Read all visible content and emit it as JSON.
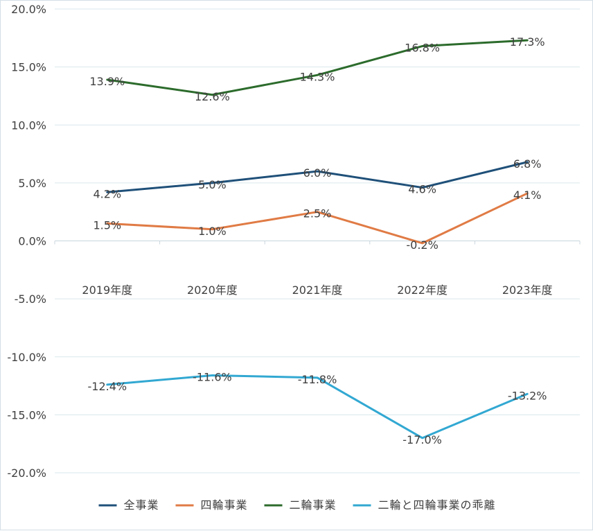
{
  "chart_data": {
    "type": "line",
    "title": "",
    "xlabel": "",
    "ylabel": "",
    "categories": [
      "2019年度",
      "2020年度",
      "2021年度",
      "2022年度",
      "2023年度"
    ],
    "yticks": [
      "20.0%",
      "15.0%",
      "10.0%",
      "5.0%",
      "0.0%",
      "-5.0%",
      "-10.0%",
      "-15.0%",
      "-20.0%"
    ],
    "ylim": [
      -20,
      20
    ],
    "grid": true,
    "legend_position": "bottom",
    "series": [
      {
        "name": "全事業",
        "color": "#1f5079",
        "values": [
          4.2,
          5.0,
          6.0,
          4.6,
          6.8
        ],
        "labels": [
          "4.2%",
          "5.0%",
          "6.0%",
          "4.6%",
          "6.8%"
        ]
      },
      {
        "name": "四輪事業",
        "color": "#e07b45",
        "values": [
          1.5,
          1.0,
          2.5,
          -0.2,
          4.1
        ],
        "labels": [
          "1.5%",
          "1.0%",
          "2.5%",
          "-0.2%",
          "4.1%"
        ]
      },
      {
        "name": "二輪事業",
        "color": "#2c6b2c",
        "values": [
          13.9,
          12.6,
          14.3,
          16.8,
          17.3
        ],
        "labels": [
          "13.9%",
          "12.6%",
          "14.3%",
          "16.8%",
          "17.3%"
        ]
      },
      {
        "name": "二輪と四輪事業の乖離",
        "color": "#32a8d2",
        "values": [
          -12.4,
          -11.6,
          -11.8,
          -17.0,
          -13.2
        ],
        "labels": [
          "-12.4%",
          "-11.6%",
          "-11.8%",
          "-17.0%",
          "-13.2%"
        ]
      }
    ]
  }
}
